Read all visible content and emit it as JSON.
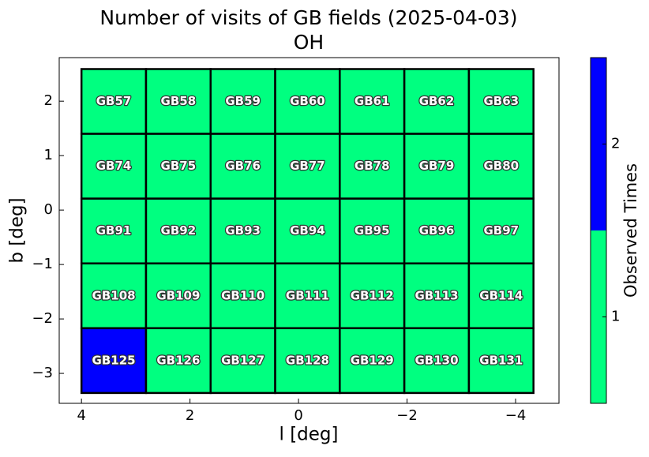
{
  "chart_data": {
    "type": "heatmap",
    "title": "Number of visits of GB fields (2025-04-03)",
    "subtitle": "OH",
    "x_label": "l [deg]",
    "y_label": "b [deg]",
    "xlim": [
      4.41,
      -4.8
    ],
    "ylim": [
      -3.55,
      2.8
    ],
    "xticks": [
      4,
      2,
      0,
      {
        "value": -2,
        "label": "−2"
      },
      {
        "value": -4,
        "label": "−4"
      }
    ],
    "yticks": [
      {
        "value": -3,
        "label": "−3"
      },
      {
        "value": -2,
        "label": "−2"
      },
      {
        "value": -1,
        "label": "−1"
      },
      0,
      1,
      2
    ],
    "l_edges": [
      4.0,
      2.81,
      1.62,
      0.43,
      -0.76,
      -1.95,
      -3.14,
      -4.33
    ],
    "b_edges": [
      2.59,
      1.4,
      0.21,
      -0.98,
      -2.17,
      -3.36
    ],
    "rows": [
      [
        {
          "name": "GB57",
          "visits": 1
        },
        {
          "name": "GB58",
          "visits": 1
        },
        {
          "name": "GB59",
          "visits": 1
        },
        {
          "name": "GB60",
          "visits": 1
        },
        {
          "name": "GB61",
          "visits": 1
        },
        {
          "name": "GB62",
          "visits": 1
        },
        {
          "name": "GB63",
          "visits": 1
        }
      ],
      [
        {
          "name": "GB74",
          "visits": 1
        },
        {
          "name": "GB75",
          "visits": 1
        },
        {
          "name": "GB76",
          "visits": 1
        },
        {
          "name": "GB77",
          "visits": 1
        },
        {
          "name": "GB78",
          "visits": 1
        },
        {
          "name": "GB79",
          "visits": 1
        },
        {
          "name": "GB80",
          "visits": 1
        }
      ],
      [
        {
          "name": "GB91",
          "visits": 1
        },
        {
          "name": "GB92",
          "visits": 1
        },
        {
          "name": "GB93",
          "visits": 1
        },
        {
          "name": "GB94",
          "visits": 1
        },
        {
          "name": "GB95",
          "visits": 1
        },
        {
          "name": "GB96",
          "visits": 1
        },
        {
          "name": "GB97",
          "visits": 1
        }
      ],
      [
        {
          "name": "GB108",
          "visits": 1
        },
        {
          "name": "GB109",
          "visits": 1
        },
        {
          "name": "GB110",
          "visits": 1
        },
        {
          "name": "GB111",
          "visits": 1
        },
        {
          "name": "GB112",
          "visits": 1
        },
        {
          "name": "GB113",
          "visits": 1
        },
        {
          "name": "GB114",
          "visits": 1
        }
      ],
      [
        {
          "name": "GB125",
          "visits": 2
        },
        {
          "name": "GB126",
          "visits": 1
        },
        {
          "name": "GB127",
          "visits": 1
        },
        {
          "name": "GB128",
          "visits": 1
        },
        {
          "name": "GB129",
          "visits": 1
        },
        {
          "name": "GB130",
          "visits": 1
        },
        {
          "name": "GB131",
          "visits": 1
        }
      ]
    ],
    "colorbar": {
      "label": "Observed Times",
      "ylim": [
        0.5,
        2.5
      ],
      "yticks": [
        1,
        2
      ],
      "bounds": [
        0.5,
        1.5,
        2.5
      ],
      "colors": [
        "#00ff80",
        "#0000ff"
      ]
    }
  }
}
